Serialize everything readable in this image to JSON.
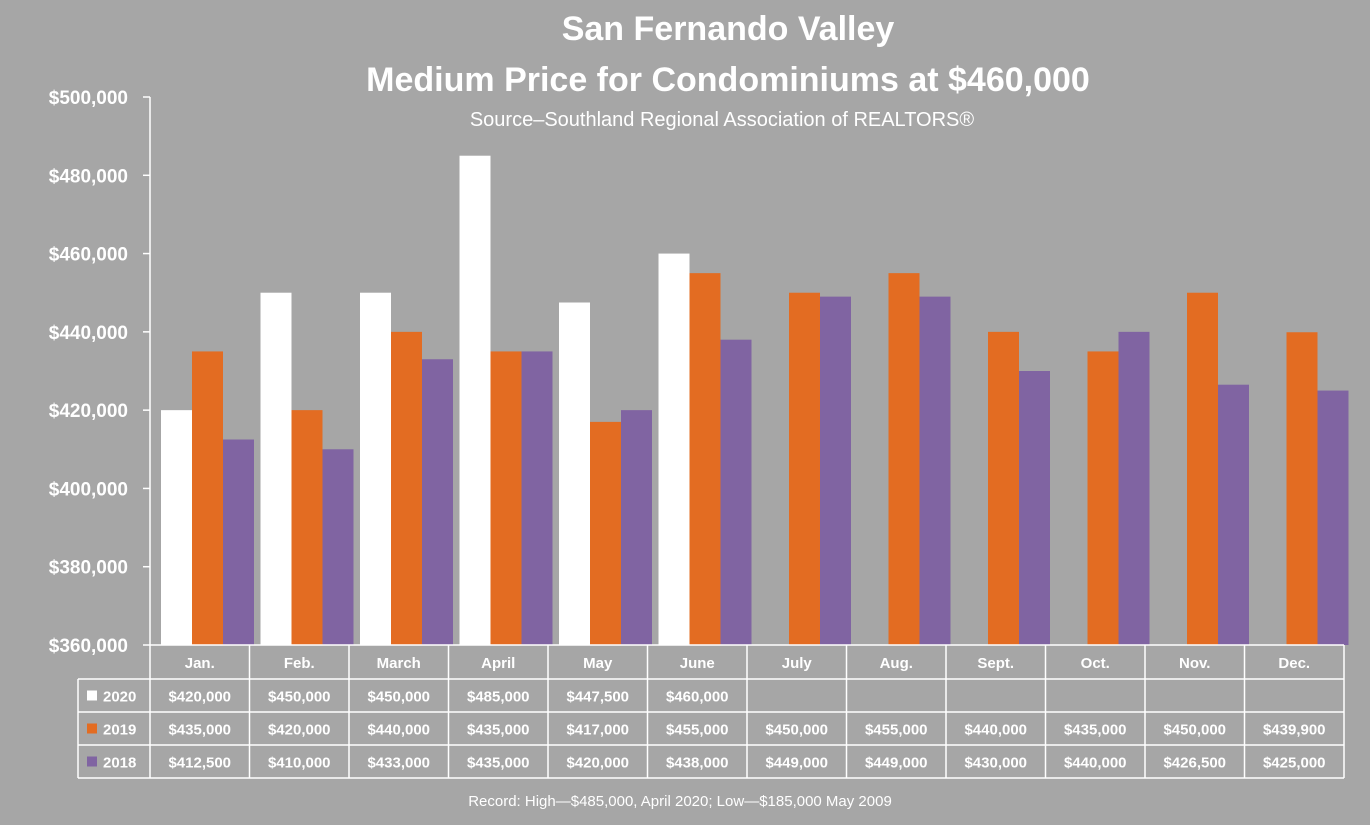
{
  "chart_data": {
    "type": "bar",
    "title": "San Fernando Valley",
    "subtitle": "Medium Price for Condominiums at $460,000",
    "source": "Source–Southland Regional Association of REALTORS®",
    "footnote": "Record:  High—$485,000, April 2020; Low—$185,000 May 2009",
    "ylim": [
      360000,
      500000
    ],
    "yticks": [
      360000,
      380000,
      400000,
      420000,
      440000,
      460000,
      480000,
      500000
    ],
    "ytick_labels": [
      "$360,000",
      "$380,000",
      "$400,000",
      "$420,000",
      "$440,000",
      "$460,000",
      "$480,000",
      "$500,000"
    ],
    "grid": false,
    "legend": "table-left",
    "categories": [
      "Jan.",
      "Feb.",
      "March",
      "April",
      "May",
      "June",
      "July",
      "Aug.",
      "Sept.",
      "Oct.",
      "Nov.",
      "Dec."
    ],
    "series": [
      {
        "name": "2020",
        "color": "#ffffff",
        "values": [
          420000,
          450000,
          450000,
          485000,
          447500,
          460000,
          null,
          null,
          null,
          null,
          null,
          null
        ],
        "labels": [
          "$420,000",
          "$450,000",
          "$450,000",
          "$485,000",
          "$447,500",
          "$460,000",
          "",
          "",
          "",
          "",
          "",
          ""
        ]
      },
      {
        "name": "2019",
        "color": "#e36c22",
        "values": [
          435000,
          420000,
          440000,
          435000,
          417000,
          455000,
          450000,
          455000,
          440000,
          435000,
          450000,
          439900
        ],
        "labels": [
          "$435,000",
          "$420,000",
          "$440,000",
          "$435,000",
          "$417,000",
          "$455,000",
          "$450,000",
          "$455,000",
          "$440,000",
          "$435,000",
          "$450,000",
          "$439,900"
        ]
      },
      {
        "name": "2018",
        "color": "#8064a2",
        "values": [
          412500,
          410000,
          433000,
          435000,
          420000,
          438000,
          449000,
          449000,
          430000,
          440000,
          426500,
          425000
        ],
        "labels": [
          "$412,500",
          "$410,000",
          "$433,000",
          "$435,000",
          "$420,000",
          "$438,000",
          "$449,000",
          "$449,000",
          "$430,000",
          "$440,000",
          "$426,500",
          "$425,000"
        ]
      }
    ]
  }
}
